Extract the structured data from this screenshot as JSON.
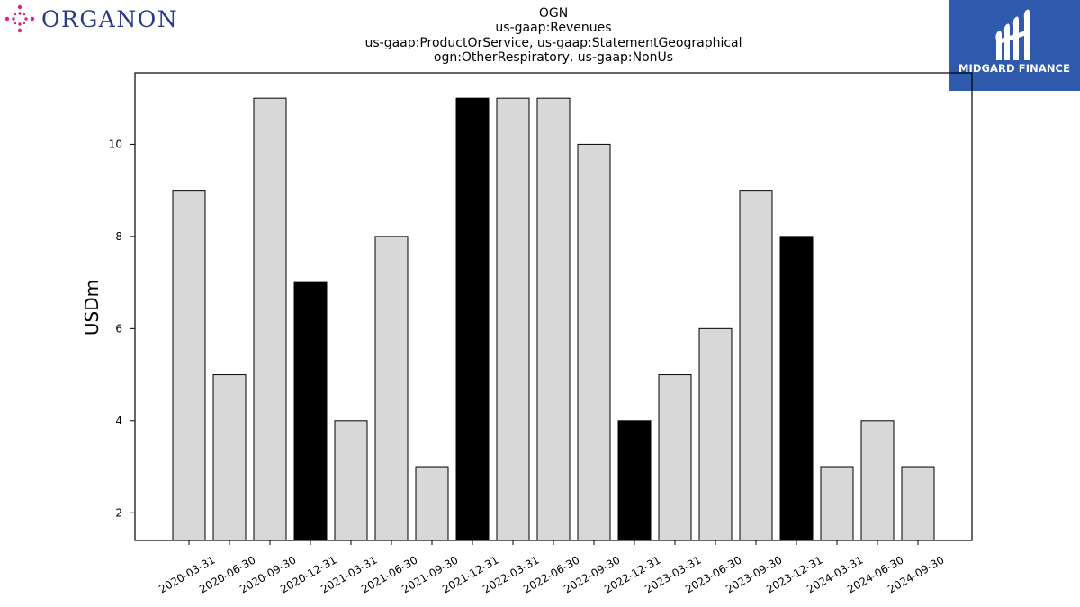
{
  "brand_left": {
    "wordmark": "ORGANON",
    "color": "#2b3a8a",
    "accent": "#e0267a"
  },
  "brand_right": {
    "wordmark": "MIDGARD FINANCE",
    "background": "#2f5aae"
  },
  "chart_data": {
    "type": "bar",
    "title": [
      "OGN",
      "us-gaap:Revenues",
      "us-gaap:ProductOrService, us-gaap:StatementGeographical",
      "ogn:OtherRespiratory, us-gaap:NonUs"
    ],
    "xlabel": "",
    "ylabel": "USDm",
    "ylim": [
      1.4,
      11.55
    ],
    "yticks": [
      2,
      4,
      6,
      8,
      10
    ],
    "grid": false,
    "categories": [
      "2020-03-31",
      "2020-06-30",
      "2020-09-30",
      "2020-12-31",
      "2021-03-31",
      "2021-06-30",
      "2021-09-30",
      "2021-12-31",
      "2022-03-31",
      "2022-06-30",
      "2022-09-30",
      "2022-12-31",
      "2023-03-31",
      "2023-06-30",
      "2023-09-30",
      "2023-12-31",
      "2024-03-31",
      "2024-06-30",
      "2024-09-30"
    ],
    "values": [
      9,
      5,
      11,
      7,
      4,
      8,
      3,
      11,
      11,
      11,
      10,
      4,
      5,
      6,
      9,
      8,
      3,
      4,
      3
    ],
    "highlight_quarter_end": "12-31",
    "colors": {
      "bar": "#d8d8d8",
      "highlight": "#000000",
      "edge": "#000000"
    }
  }
}
